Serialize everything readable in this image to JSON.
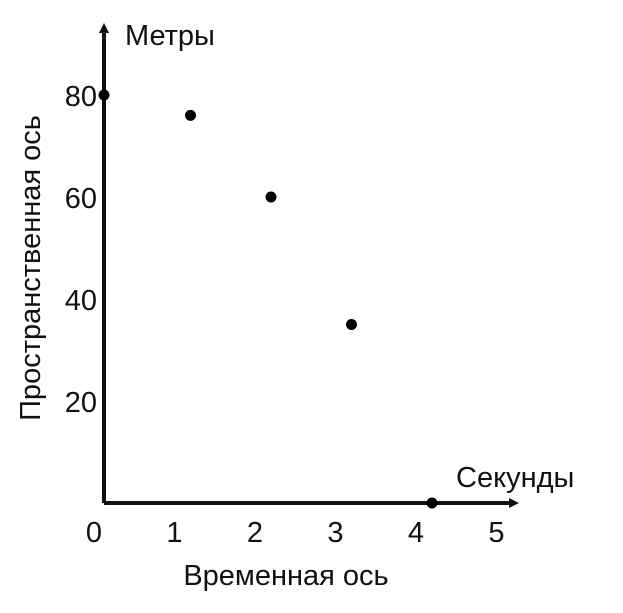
{
  "colors": {
    "axis": "#111111",
    "points": "#000000",
    "background": "#ffffff"
  },
  "chart_data": {
    "type": "scatter",
    "title": "",
    "xlabel": "Временная ось",
    "ylabel": "Пространственная ось",
    "x_unit": "Секунды",
    "y_unit": "Метры",
    "xlim": [
      0,
      5
    ],
    "ylim": [
      0,
      80
    ],
    "x_ticks": [
      0,
      1,
      2,
      3,
      4,
      5
    ],
    "y_ticks": [
      20,
      40,
      60,
      80
    ],
    "grid": false,
    "series": [
      {
        "x": [
          0,
          1,
          2,
          3,
          4
        ],
        "y": [
          80,
          76,
          60,
          35,
          0
        ]
      }
    ]
  }
}
